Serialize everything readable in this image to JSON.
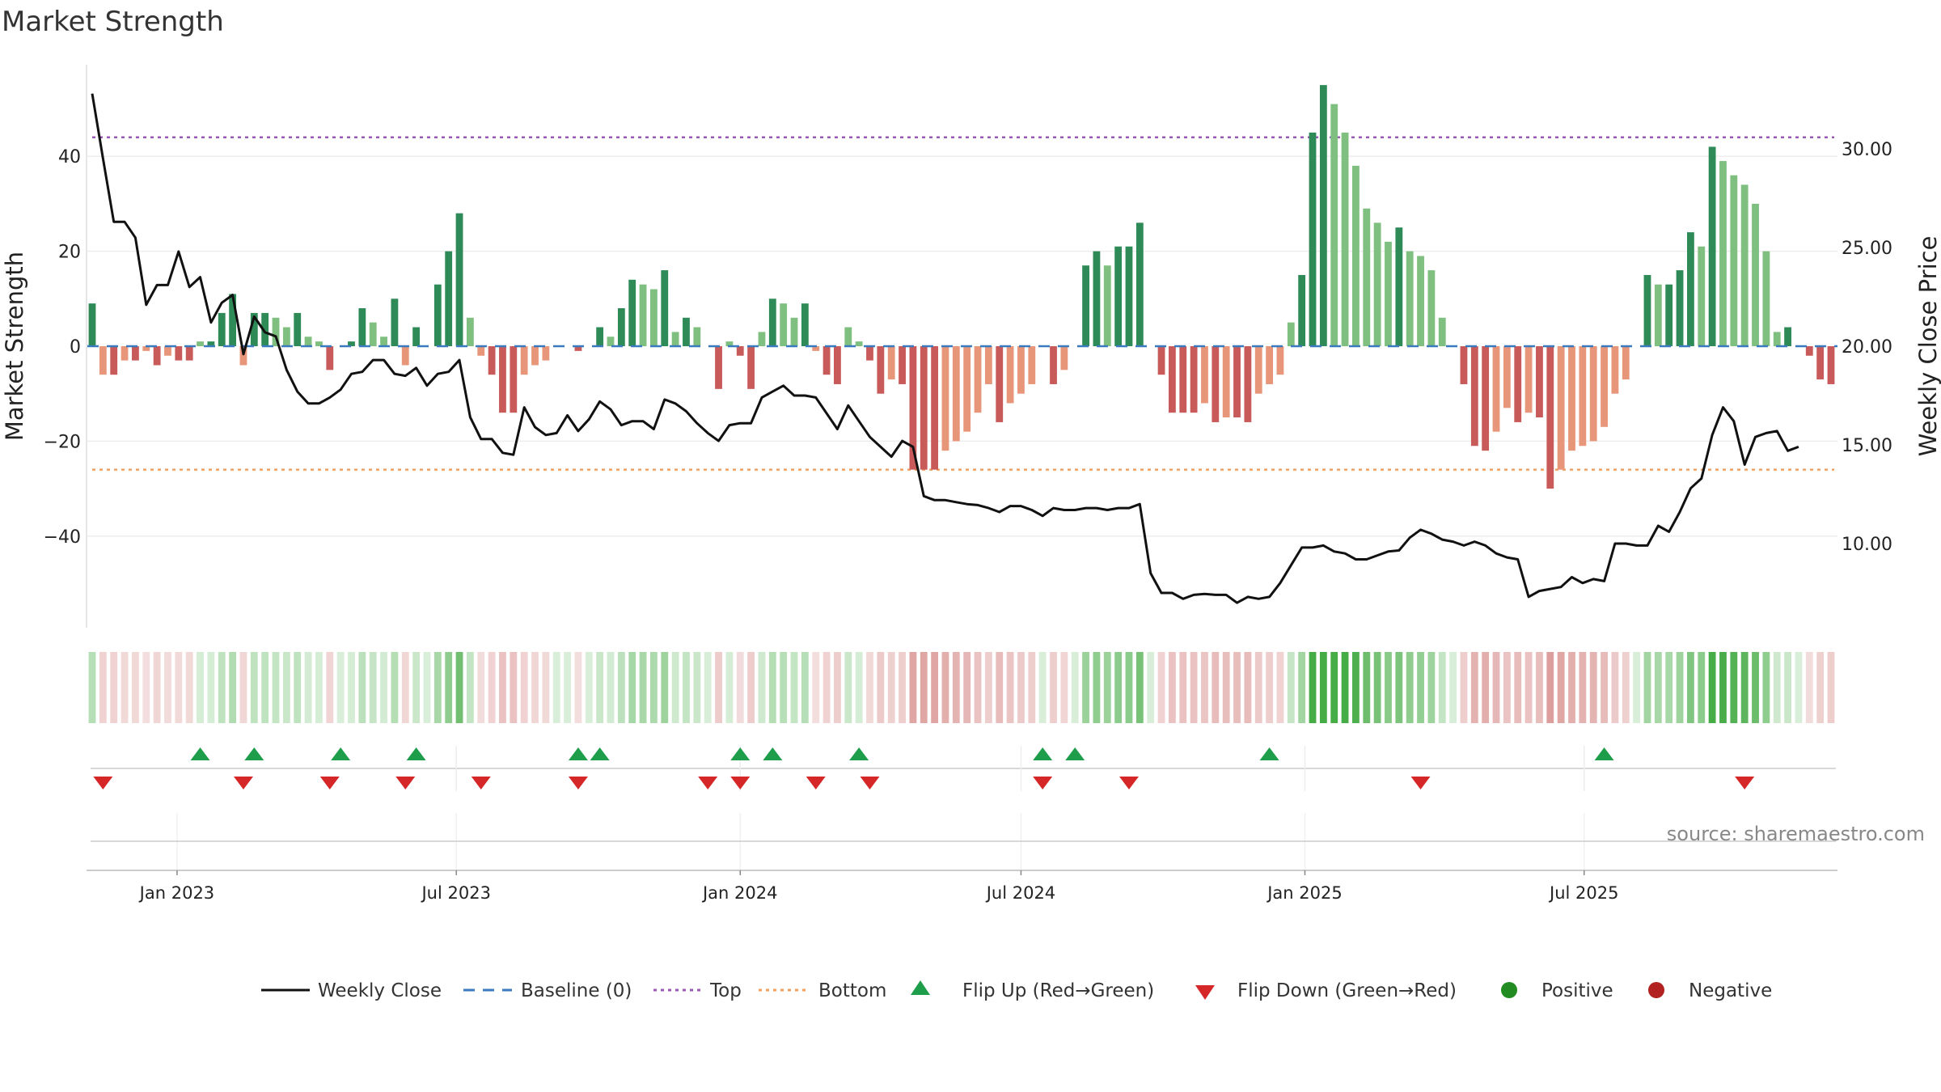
{
  "title": "Market Strength",
  "source": "source: sharemaestro.com",
  "colors": {
    "pos_strong": "#2e8b57",
    "pos_light": "#7fbf7f",
    "neg_strong": "#c85a5a",
    "neg_light": "#e8967a",
    "top": "#9b59b6",
    "bottom": "#f0a060",
    "baseline": "#3a7abf",
    "close": "#111111",
    "flip_up": "#1e9e4a",
    "flip_down": "#d62728",
    "positive": "#228b22",
    "negative": "#b22222"
  },
  "chart_data": {
    "type": "bar",
    "title": "Market Strength",
    "x_start": "2022-11-07",
    "x_interval_days": 7,
    "x_ticks": [
      "Jan 2023",
      "Jul 2023",
      "Jan 2024",
      "Jul 2024",
      "Jan 2025",
      "Jul 2025"
    ],
    "x_tick_dates": [
      "2023-01-01",
      "2023-07-01",
      "2024-01-01",
      "2024-07-01",
      "2025-01-01",
      "2025-07-01"
    ],
    "y_left": {
      "label": "Market Strength",
      "ticks": [
        "40",
        "20",
        "0",
        "−20",
        "−40"
      ],
      "tick_values": [
        40,
        20,
        0,
        -20,
        -40
      ],
      "range": [
        -59,
        59
      ]
    },
    "y_right": {
      "label": "Weekly Close Price",
      "ticks": [
        "30.00",
        "25.00",
        "20.00",
        "15.00",
        "10.00"
      ],
      "tick_values": [
        30,
        25,
        20,
        15,
        10
      ],
      "range": [
        3.55,
        34.13
      ]
    },
    "top_level": 44,
    "bottom_level": -26,
    "baseline": 0,
    "strength": [
      9,
      -6,
      -6,
      -3,
      -3,
      -1,
      -4,
      -2,
      -3,
      -3,
      1,
      1,
      7,
      11,
      -4,
      7,
      7,
      6,
      4,
      7,
      2,
      1,
      -5,
      0,
      1,
      8,
      5,
      2,
      10,
      -4,
      4,
      0,
      13,
      20,
      28,
      6,
      -2,
      -6,
      -14,
      -14,
      -6,
      -4,
      -3,
      0,
      0,
      -1,
      0,
      4,
      2,
      8,
      14,
      13,
      12,
      16,
      3,
      6,
      4,
      0,
      -9,
      1,
      -2,
      -9,
      3,
      10,
      9,
      6,
      9,
      -1,
      -6,
      -8,
      4,
      1,
      -3,
      -10,
      -7,
      -8,
      -26,
      -26,
      -26,
      -22,
      -20,
      -18,
      -14,
      -8,
      -16,
      -12,
      -10,
      -8,
      0,
      -8,
      -5,
      0,
      17,
      20,
      17,
      21,
      21,
      26,
      0,
      -6,
      -14,
      -14,
      -14,
      -12,
      -16,
      -15,
      -15,
      -16,
      -10,
      -8,
      -6,
      5,
      15,
      45,
      55,
      51,
      45,
      38,
      29,
      26,
      22,
      25,
      20,
      19,
      16,
      6,
      0,
      -8,
      -21,
      -22,
      -18,
      -13,
      -16,
      -14,
      -15,
      -30,
      -26,
      -22,
      -21,
      -20,
      -17,
      -10,
      -7,
      0,
      15,
      13,
      13,
      16,
      24,
      21,
      42,
      39,
      36,
      34,
      30,
      20,
      3,
      4,
      0,
      -2,
      -7,
      -8
    ],
    "weekly_close": [
      32.8,
      29.5,
      26.3,
      26.3,
      25.5,
      22.1,
      23.1,
      23.1,
      24.8,
      23.0,
      23.5,
      21.2,
      22.2,
      22.6,
      19.6,
      21.5,
      20.7,
      20.5,
      18.8,
      17.7,
      17.1,
      17.1,
      17.4,
      17.8,
      18.6,
      18.7,
      19.3,
      19.3,
      18.6,
      18.5,
      18.9,
      18.0,
      18.6,
      18.7,
      19.3,
      16.4,
      15.3,
      15.3,
      14.6,
      14.5,
      16.9,
      15.9,
      15.5,
      15.6,
      16.5,
      15.7,
      16.3,
      17.2,
      16.8,
      16.0,
      16.2,
      16.2,
      15.8,
      17.3,
      17.1,
      16.7,
      16.1,
      15.6,
      15.2,
      16.0,
      16.1,
      16.1,
      17.4,
      17.7,
      18.0,
      17.5,
      17.5,
      17.4,
      16.6,
      15.8,
      17.0,
      16.2,
      15.4,
      14.9,
      14.4,
      15.2,
      14.9,
      12.4,
      12.2,
      12.2,
      12.1,
      12.0,
      11.95,
      11.8,
      11.6,
      11.9,
      11.9,
      11.7,
      11.4,
      11.8,
      11.7,
      11.7,
      11.8,
      11.8,
      11.7,
      11.8,
      11.8,
      12.0,
      8.5,
      7.5,
      7.5,
      7.2,
      7.4,
      7.45,
      7.4,
      7.4,
      7.0,
      7.3,
      7.2,
      7.3,
      8.0,
      8.9,
      9.8,
      9.8,
      9.9,
      9.6,
      9.5,
      9.2,
      9.2,
      9.4,
      9.6,
      9.65,
      10.3,
      10.7,
      10.5,
      10.2,
      10.1,
      9.9,
      10.1,
      9.9,
      9.5,
      9.3,
      9.2,
      7.3,
      7.6,
      7.7,
      7.8,
      8.3,
      8.0,
      8.2,
      8.1,
      10.0,
      10.0,
      9.9,
      9.9,
      10.9,
      10.6,
      11.6,
      12.8,
      13.3,
      15.5,
      16.9,
      16.2,
      14.0,
      15.4,
      15.6,
      15.7,
      14.7,
      14.9
    ],
    "flip_up_indices": [
      10,
      15,
      23,
      30,
      45,
      47,
      60,
      63,
      71,
      88,
      91,
      109,
      140
    ],
    "flip_down_indices": [
      1,
      14,
      22,
      29,
      36,
      45,
      57,
      60,
      67,
      72,
      88,
      96,
      123,
      153
    ],
    "legend": [
      "Weekly Close",
      "Baseline (0)",
      "Top",
      "Bottom",
      "Flip Up (Red→Green)",
      "Flip Down (Green→Red)",
      "Positive",
      "Negative"
    ]
  }
}
